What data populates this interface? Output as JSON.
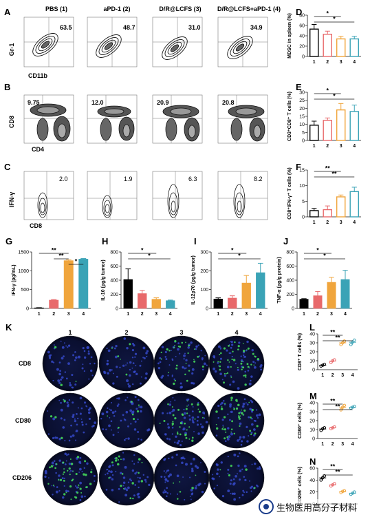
{
  "panel_letters": [
    "A",
    "B",
    "C",
    "D",
    "E",
    "F",
    "G",
    "H",
    "I",
    "J",
    "K",
    "L",
    "M",
    "N"
  ],
  "flow": {
    "groups": [
      "PBS (1)",
      "aPD-1 (2)",
      "D/R@LCFS (3)",
      "D/R@LCFS+aPD-1 (4)"
    ],
    "rows": [
      {
        "ylabel": "Gr-1",
        "xlabel": "CD11b",
        "values": [
          "63.5",
          "48.7",
          "31.0",
          "34.9"
        ]
      },
      {
        "ylabel": "CD8",
        "xlabel": "CD4",
        "values": [
          "9.75",
          "12.0",
          "20.9",
          "20.8"
        ]
      },
      {
        "ylabel": "IFN-γ",
        "xlabel": "CD8",
        "values": [
          "2.0",
          "1.9",
          "6.3",
          "8.2"
        ]
      }
    ]
  },
  "colors": {
    "g1": "#000000",
    "g2": "#e8696b",
    "g3": "#f0a53c",
    "g4": "#3aa3b6"
  },
  "if_images": {
    "columns": [
      "1",
      "2",
      "3",
      "4"
    ],
    "rows": [
      "CD8",
      "CD80",
      "CD206"
    ]
  },
  "watermark": "生物医用高分子材料",
  "chart_data": [
    {
      "panel": "D",
      "type": "bar",
      "ylabel": "MDSC in spleen (%)",
      "categories": [
        "1",
        "2",
        "3",
        "4"
      ],
      "values": [
        53,
        43,
        34,
        34
      ],
      "errors": [
        9,
        6,
        5,
        5
      ],
      "ylim": [
        0,
        80
      ],
      "yticks": [
        0,
        20,
        40,
        60,
        80
      ],
      "style": "open",
      "sig": [
        {
          "a": 1,
          "b": 3,
          "label": "*"
        },
        {
          "a": 1,
          "b": 4,
          "label": "*"
        }
      ]
    },
    {
      "panel": "E",
      "type": "bar",
      "ylabel": "CD3⁺CD8⁺ T cells (%)",
      "categories": [
        "1",
        "2",
        "3",
        "4"
      ],
      "values": [
        9.5,
        12.5,
        19,
        18
      ],
      "errors": [
        2.5,
        1.5,
        4,
        4
      ],
      "ylim": [
        0,
        30
      ],
      "yticks": [
        0,
        5,
        10,
        15,
        20,
        25,
        30
      ],
      "style": "open",
      "sig": [
        {
          "a": 1,
          "b": 3,
          "label": "*"
        },
        {
          "a": 1,
          "b": 4,
          "label": "*"
        }
      ]
    },
    {
      "panel": "F",
      "type": "bar",
      "ylabel": "CD8⁺IFN-γ⁺ T cells (%)",
      "categories": [
        "1",
        "2",
        "3",
        "4"
      ],
      "values": [
        2.0,
        2.3,
        6.4,
        8.1
      ],
      "errors": [
        0.7,
        1.2,
        0.6,
        1.4
      ],
      "ylim": [
        0,
        15
      ],
      "yticks": [
        0,
        5,
        10,
        15
      ],
      "style": "open",
      "sig": [
        {
          "a": 1,
          "b": 3,
          "label": "**"
        },
        {
          "a": 1,
          "b": 4,
          "label": "**"
        }
      ]
    },
    {
      "panel": "G",
      "type": "bar",
      "ylabel": "IFN-γ (pg/mL)",
      "categories": [
        "1",
        "2",
        "3",
        "4"
      ],
      "values": [
        15,
        220,
        1270,
        1310
      ],
      "errors": [
        5,
        15,
        20,
        15
      ],
      "ylim": [
        0,
        1500
      ],
      "yticks": [
        0,
        500,
        1000,
        1500
      ],
      "style": "filled",
      "sig": [
        {
          "a": 1,
          "b": 3,
          "label": "**"
        },
        {
          "a": 2,
          "b": 3,
          "label": "**"
        },
        {
          "a": 3,
          "b": 4,
          "label": "*"
        }
      ]
    },
    {
      "panel": "H",
      "type": "bar",
      "ylabel": "IL-10 (pg/g tumor)",
      "categories": [
        "1",
        "2",
        "3",
        "4"
      ],
      "values": [
        410,
        210,
        130,
        110
      ],
      "errors": [
        150,
        45,
        20,
        8
      ],
      "ylim": [
        0,
        800
      ],
      "yticks": [
        0,
        200,
        400,
        600,
        800
      ],
      "style": "filled",
      "sig": [
        {
          "a": 1,
          "b": 3,
          "label": "*"
        },
        {
          "a": 1,
          "b": 4,
          "label": "*"
        }
      ]
    },
    {
      "panel": "I",
      "type": "bar",
      "ylabel": "IL-12p70 (pg/g tumor)",
      "categories": [
        "1",
        "2",
        "3",
        "4"
      ],
      "values": [
        50,
        55,
        135,
        190
      ],
      "errors": [
        6,
        12,
        40,
        50
      ],
      "ylim": [
        0,
        300
      ],
      "yticks": [
        0,
        100,
        200,
        300
      ],
      "style": "filled",
      "sig": [
        {
          "a": 1,
          "b": 3,
          "label": "*"
        },
        {
          "a": 1,
          "b": 4,
          "label": "*"
        }
      ]
    },
    {
      "panel": "J",
      "type": "bar",
      "ylabel": "TNF-α (pg/g protein)",
      "categories": [
        "1",
        "2",
        "3",
        "4"
      ],
      "values": [
        130,
        180,
        370,
        410
      ],
      "errors": [
        8,
        60,
        70,
        130
      ],
      "ylim": [
        0,
        800
      ],
      "yticks": [
        0,
        200,
        400,
        600,
        800
      ],
      "style": "filled",
      "sig": [
        {
          "a": 1,
          "b": 3,
          "label": "*"
        },
        {
          "a": 1,
          "b": 4,
          "label": "*"
        }
      ]
    },
    {
      "panel": "L",
      "type": "scatter",
      "ylabel": "CD8⁺ T cells (%)",
      "categories": [
        "1",
        "2",
        "3",
        "4"
      ],
      "points": [
        [
          4,
          5,
          6
        ],
        [
          8,
          10,
          11
        ],
        [
          28,
          30,
          32
        ],
        [
          28,
          31,
          33
        ]
      ],
      "ylim": [
        0,
        40
      ],
      "yticks": [
        0,
        10,
        20,
        30,
        40
      ],
      "sig": [
        {
          "a": 1,
          "b": 3,
          "label": "**"
        },
        {
          "a": 1,
          "b": 4,
          "label": "**"
        }
      ]
    },
    {
      "panel": "M",
      "type": "scatter",
      "ylabel": "CD80⁺ cells (%)",
      "categories": [
        "1",
        "2",
        "3",
        "4"
      ],
      "points": [
        [
          9,
          11,
          12
        ],
        [
          11,
          12,
          13
        ],
        [
          32,
          35,
          37
        ],
        [
          34,
          35,
          36
        ]
      ],
      "ylim": [
        0,
        40
      ],
      "yticks": [
        0,
        10,
        20,
        30,
        40
      ],
      "sig": [
        {
          "a": 1,
          "b": 3,
          "label": "**"
        },
        {
          "a": 1,
          "b": 4,
          "label": "**"
        }
      ]
    },
    {
      "panel": "N",
      "type": "scatter",
      "ylabel": "CD206⁺ cells (%)",
      "categories": [
        "1",
        "2",
        "3",
        "4"
      ],
      "points": [
        [
          40,
          44,
          47
        ],
        [
          30,
          32,
          34
        ],
        [
          19,
          21,
          22
        ],
        [
          16,
          18,
          20
        ]
      ],
      "ylim": [
        0,
        60
      ],
      "yticks": [
        0,
        20,
        40,
        60
      ],
      "sig": [
        {
          "a": 1,
          "b": 3,
          "label": "**"
        },
        {
          "a": 1,
          "b": 4,
          "label": "**"
        }
      ]
    }
  ]
}
